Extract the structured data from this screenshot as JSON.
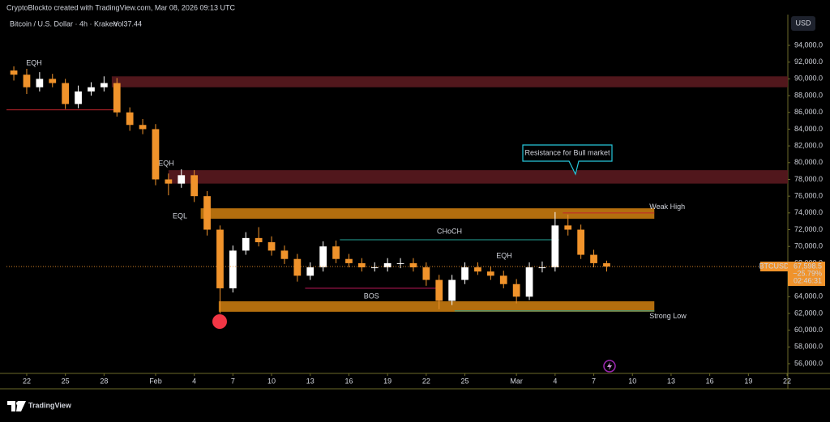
{
  "header": {
    "credit": "CryptoBlockto created with TradingView.com, Mar 08, 2026 09:13 UTC",
    "symbol": "Bitcoin / U.S. Dollar · 4h · Kraken",
    "volume": "Vol37.44",
    "currency": "USD"
  },
  "price_tag": {
    "symbol": "BTCUSD",
    "price": "67,598.5",
    "change": "−25.79%",
    "countdown": "02:46:31"
  },
  "footer": {
    "brand": "TradingView"
  },
  "chart_data": {
    "type": "candlestick",
    "up_color": "#ffffff",
    "down_color": "#f0932b",
    "x": [
      21,
      22,
      23,
      24,
      25,
      26,
      27,
      28,
      29,
      30,
      31,
      32,
      33,
      34,
      35,
      36,
      37,
      38,
      39,
      40,
      41,
      42,
      43,
      44,
      45,
      46,
      47,
      48,
      49,
      50,
      51,
      52,
      53,
      54,
      55,
      56,
      57,
      58,
      59,
      60,
      61,
      62,
      63,
      64,
      65,
      66,
      67
    ],
    "open": [
      91000,
      90500,
      89000,
      90000,
      89500,
      87000,
      88500,
      89000,
      89500,
      86000,
      84500,
      84000,
      78000,
      77500,
      78500,
      76000,
      72000,
      65000,
      69500,
      71000,
      70500,
      69500,
      68500,
      66500,
      67500,
      70000,
      68500,
      68000,
      67500,
      67500,
      68000,
      68000,
      67500,
      66000,
      63500,
      66000,
      67500,
      67000,
      66500,
      65500,
      64000,
      67500,
      67500,
      72500,
      72000,
      69000,
      68000
    ],
    "high": [
      91500,
      91200,
      90800,
      90600,
      90000,
      89200,
      89600,
      90300,
      90100,
      86600,
      85200,
      84600,
      78700,
      79200,
      79100,
      76600,
      72500,
      70100,
      71700,
      72300,
      71200,
      70100,
      69100,
      68100,
      70600,
      70700,
      69100,
      68600,
      68100,
      68600,
      68600,
      68600,
      68100,
      66600,
      66600,
      68100,
      68100,
      67600,
      67100,
      66100,
      68100,
      68200,
      74100,
      73800,
      72600,
      69600,
      68300
    ],
    "low": [
      89800,
      88200,
      88500,
      89000,
      86400,
      86500,
      88000,
      88500,
      85500,
      83800,
      83400,
      77300,
      76100,
      77000,
      75300,
      71300,
      62000,
      64500,
      69000,
      70000,
      68900,
      67900,
      65800,
      66000,
      67000,
      68000,
      67500,
      67000,
      67000,
      67000,
      67400,
      67000,
      65300,
      62500,
      63000,
      65500,
      66600,
      66000,
      65000,
      63200,
      63600,
      66900,
      67000,
      71300,
      68500,
      67500,
      67000
    ],
    "close": [
      90500,
      89000,
      90000,
      89500,
      87000,
      88500,
      89000,
      89500,
      86000,
      84500,
      84000,
      78000,
      77500,
      78500,
      76000,
      72000,
      65000,
      69500,
      71000,
      70500,
      69500,
      68500,
      66500,
      67500,
      70000,
      68500,
      68000,
      67500,
      67500,
      68000,
      68000,
      67500,
      66000,
      63500,
      66000,
      67500,
      67000,
      66500,
      65500,
      64000,
      67500,
      67500,
      72500,
      72000,
      69000,
      68000,
      67598.5
    ],
    "xlim": [
      20.43,
      81.06
    ],
    "ylim": [
      54840,
      97675
    ],
    "xticks": [
      {
        "value": 22,
        "label": "22"
      },
      {
        "value": 25,
        "label": "25"
      },
      {
        "value": 28,
        "label": "28"
      },
      {
        "value": 32,
        "label": "Feb"
      },
      {
        "value": 35,
        "label": "4"
      },
      {
        "value": 38,
        "label": "7"
      },
      {
        "value": 41,
        "label": "10"
      },
      {
        "value": 44,
        "label": "13"
      },
      {
        "value": 47,
        "label": "16"
      },
      {
        "value": 50,
        "label": "19"
      },
      {
        "value": 53,
        "label": "22"
      },
      {
        "value": 56,
        "label": "25"
      },
      {
        "value": 60,
        "label": "Mar"
      },
      {
        "value": 63,
        "label": "4"
      },
      {
        "value": 66,
        "label": "7"
      },
      {
        "value": 69,
        "label": "10"
      },
      {
        "value": 72,
        "label": "13"
      },
      {
        "value": 75,
        "label": "16"
      },
      {
        "value": 78,
        "label": "19"
      },
      {
        "value": 81,
        "label": "22"
      }
    ],
    "yticks": [
      {
        "value": 56000,
        "label": "56,000.0"
      },
      {
        "value": 58000,
        "label": "58,000.0"
      },
      {
        "value": 60000,
        "label": "60,000.0"
      },
      {
        "value": 62000,
        "label": "62,000.0"
      },
      {
        "value": 64000,
        "label": "64,000.0"
      },
      {
        "value": 66000,
        "label": "66,000.0"
      },
      {
        "value": 68000,
        "label": "68,000.0"
      },
      {
        "value": 70000,
        "label": "70,000.0"
      },
      {
        "value": 72000,
        "label": "72,000.0"
      },
      {
        "value": 74000,
        "label": "74,000.0"
      },
      {
        "value": 76000,
        "label": "76,000.0"
      },
      {
        "value": 78000,
        "label": "78,000.0"
      },
      {
        "value": 80000,
        "label": "80,000.0"
      },
      {
        "value": 82000,
        "label": "82,000.0"
      },
      {
        "value": 84000,
        "label": "84,000.0"
      },
      {
        "value": 86000,
        "label": "86,000.0"
      },
      {
        "value": 88000,
        "label": "88,000.0"
      },
      {
        "value": 90000,
        "label": "90,000.0"
      },
      {
        "value": 92000,
        "label": "92,000.0"
      },
      {
        "value": 94000,
        "label": "94,000.0"
      }
    ],
    "grid": false,
    "zones": [
      {
        "top": 90300,
        "bottom": 89000,
        "start": 28.6,
        "color": "#5a1a1f"
      },
      {
        "top": 79100,
        "bottom": 77500,
        "start": 33.0,
        "color": "#5a1a1f"
      },
      {
        "top": 74550,
        "bottom": 73300,
        "start": 35.5,
        "end": 70.7,
        "color": "#c67a0f"
      },
      {
        "top": 63450,
        "bottom": 62200,
        "start": 36.9,
        "end": 70.7,
        "color": "#c67a0f"
      }
    ],
    "levels": [
      {
        "price": 86300,
        "start": 20.43,
        "end": 29.2,
        "color": "#c0262d"
      },
      {
        "price": 65000,
        "start": 43.6,
        "end": 53.9,
        "color": "#c2185b",
        "label": "BOS"
      },
      {
        "price": 70800,
        "start": 46.3,
        "end": 63.3,
        "color": "#26a69a",
        "label": "CHoCH"
      },
      {
        "price": 62300,
        "start": 55.2,
        "end": 70.7,
        "color": "#26a69a",
        "label": "Strong Low"
      },
      {
        "price": 74000,
        "start": 63.6,
        "end": 70.7,
        "color": "#c0262d",
        "label": "Weak High"
      }
    ],
    "marks": [
      "EQH",
      "EQH",
      "EQL",
      "EQH"
    ],
    "callout": "Resistance for Bull market"
  }
}
